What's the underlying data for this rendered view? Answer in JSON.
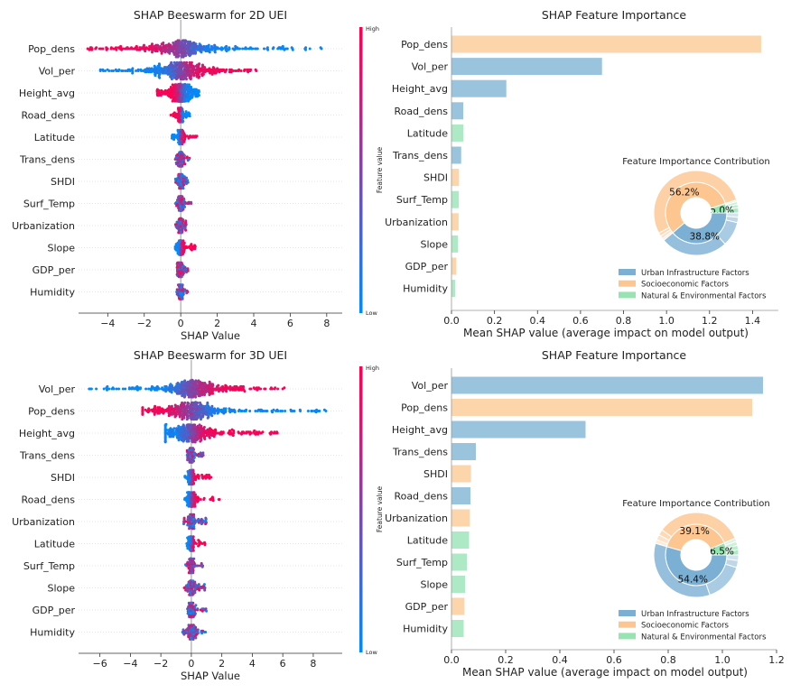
{
  "chart_data": [
    {
      "type": "scatter",
      "subtype": "beeswarm",
      "title": "SHAP Beeswarm for 2D UEI",
      "xlabel": "SHAP Value",
      "xlim": [
        -5.6,
        8.85
      ],
      "xticks": [
        -4,
        -2,
        0,
        2,
        4,
        6,
        8
      ],
      "colorbar": {
        "label": "Feature value",
        "high": "High",
        "low": "Low",
        "low_color": "#008bfb",
        "high_color": "#ff0051"
      },
      "features": [
        {
          "name": "Pop_dens",
          "range": [
            -5.1,
            8.2
          ],
          "high_side": "left"
        },
        {
          "name": "Vol_per",
          "range": [
            -4.4,
            4.3
          ],
          "high_side": "right"
        },
        {
          "name": "Height_avg",
          "range": [
            -1.3,
            1.0
          ],
          "high_side": "left"
        },
        {
          "name": "Road_dens",
          "range": [
            -0.6,
            0.5
          ],
          "high_side": "left"
        },
        {
          "name": "Latitude",
          "range": [
            -0.5,
            0.9
          ],
          "high_side": "right"
        },
        {
          "name": "Trans_dens",
          "range": [
            -0.3,
            0.5
          ],
          "high_side": "mixed"
        },
        {
          "name": "SHDI",
          "range": [
            -0.3,
            0.4
          ],
          "high_side": "mixed"
        },
        {
          "name": "Surf_Temp",
          "range": [
            -0.3,
            0.6
          ],
          "high_side": "mixed"
        },
        {
          "name": "Urbanization",
          "range": [
            -0.3,
            0.4
          ],
          "high_side": "mixed"
        },
        {
          "name": "Slope",
          "range": [
            -0.3,
            0.8
          ],
          "high_side": "right"
        },
        {
          "name": "GDP_per",
          "range": [
            -0.2,
            0.4
          ],
          "high_side": "mixed"
        },
        {
          "name": "Humidity",
          "range": [
            -0.3,
            0.4
          ],
          "high_side": "mixed"
        }
      ]
    },
    {
      "type": "bar",
      "orientation": "horizontal",
      "title": "SHAP Feature Importance",
      "xlabel": "Mean SHAP value (average impact on model output)",
      "xlim": [
        0,
        1.52
      ],
      "xticks": [
        "0.0",
        "0.2",
        "0.4",
        "0.6",
        "0.8",
        "1.0",
        "1.2",
        "1.4"
      ],
      "categories": [
        "Pop_dens",
        "Vol_per",
        "Height_avg",
        "Road_dens",
        "Latitude",
        "Trans_dens",
        "SHDI",
        "Surf_Temp",
        "Urbanization",
        "Slope",
        "GDP_per",
        "Humidity"
      ],
      "values": [
        1.44,
        0.7,
        0.255,
        0.055,
        0.055,
        0.045,
        0.035,
        0.034,
        0.033,
        0.03,
        0.022,
        0.018
      ],
      "groups": [
        "Socio",
        "Urban",
        "Urban",
        "Urban",
        "Natural",
        "Urban",
        "Socio",
        "Natural",
        "Socio",
        "Natural",
        "Socio",
        "Natural"
      ],
      "inset": {
        "type": "pie",
        "title": "Feature Importance Contribution",
        "slices": [
          {
            "key": "Natural",
            "label": "Natural & Environmental Factors",
            "percent": 5.0,
            "pct_label": "5.0%",
            "color": "#98e3b2"
          },
          {
            "key": "Socio",
            "label": "Socioeconomic Factors",
            "percent": 56.2,
            "pct_label": "56.2%",
            "color": "#fdc58f"
          },
          {
            "key": "Urban",
            "label": "Urban Infrastructure Factors",
            "percent": 38.8,
            "pct_label": "38.8%",
            "color": "#7bafd4"
          }
        ],
        "legend": [
          "Urban Infrastructure Factors",
          "Socioeconomic Factors",
          "Natural & Environmental Factors"
        ],
        "legend_position": "lower-right"
      }
    },
    {
      "type": "scatter",
      "subtype": "beeswarm",
      "title": "SHAP Beeswarm for 3D UEI",
      "xlabel": "SHAP Value",
      "xlim": [
        -7.4,
        9.9
      ],
      "xticks": [
        -6,
        -4,
        -2,
        0,
        2,
        4,
        6,
        8
      ],
      "colorbar": {
        "label": "Feature value",
        "high": "High",
        "low": "Low",
        "low_color": "#008bfb",
        "high_color": "#ff0051"
      },
      "features": [
        {
          "name": "Vol_per",
          "range": [
            -6.7,
            6.1
          ],
          "high_side": "right"
        },
        {
          "name": "Pop_dens",
          "range": [
            -3.2,
            9.2
          ],
          "high_side": "left"
        },
        {
          "name": "Height_avg",
          "range": [
            -1.7,
            5.7
          ],
          "high_side": "right"
        },
        {
          "name": "Trans_dens",
          "range": [
            -0.4,
            0.9
          ],
          "high_side": "mixed"
        },
        {
          "name": "SHDI",
          "range": [
            -0.5,
            1.3
          ],
          "high_side": "right"
        },
        {
          "name": "Road_dens",
          "range": [
            -0.5,
            1.9
          ],
          "high_side": "right"
        },
        {
          "name": "Urbanization",
          "range": [
            -0.5,
            1.0
          ],
          "high_side": "mixed"
        },
        {
          "name": "Latitude",
          "range": [
            -0.3,
            0.9
          ],
          "high_side": "right"
        },
        {
          "name": "Surf_Temp",
          "range": [
            -0.4,
            0.8
          ],
          "high_side": "mixed"
        },
        {
          "name": "Slope",
          "range": [
            -0.5,
            0.9
          ],
          "high_side": "mixed"
        },
        {
          "name": "GDP_per",
          "range": [
            -0.3,
            1.0
          ],
          "high_side": "mixed"
        },
        {
          "name": "Humidity",
          "range": [
            -0.6,
            1.0
          ],
          "high_side": "mixed"
        }
      ]
    },
    {
      "type": "bar",
      "orientation": "horizontal",
      "title": "SHAP Feature Importance",
      "xlabel": "Mean SHAP value (average impact on model output)",
      "xlim": [
        0,
        1.2
      ],
      "xticks": [
        "0.0",
        "0.2",
        "0.4",
        "0.6",
        "0.8",
        "1.0",
        "1.2"
      ],
      "categories": [
        "Vol_per",
        "Pop_dens",
        "Height_avg",
        "Trans_dens",
        "SHDI",
        "Road_dens",
        "Urbanization",
        "Latitude",
        "Surf_Temp",
        "Slope",
        "GDP_per",
        "Humidity"
      ],
      "values": [
        1.15,
        1.11,
        0.495,
        0.09,
        0.072,
        0.07,
        0.068,
        0.065,
        0.057,
        0.05,
        0.048,
        0.045
      ],
      "groups": [
        "Urban",
        "Socio",
        "Urban",
        "Urban",
        "Socio",
        "Urban",
        "Socio",
        "Natural",
        "Natural",
        "Natural",
        "Socio",
        "Natural"
      ],
      "inset": {
        "type": "pie",
        "title": "Feature Importance Contribution",
        "slices": [
          {
            "key": "Natural",
            "label": "Natural & Environmental Factors",
            "percent": 6.5,
            "pct_label": "6.5%",
            "color": "#98e3b2"
          },
          {
            "key": "Socio",
            "label": "Socioeconomic Factors",
            "percent": 39.1,
            "pct_label": "39.1%",
            "color": "#fdc58f"
          },
          {
            "key": "Urban",
            "label": "Urban Infrastructure Factors",
            "percent": 54.4,
            "pct_label": "54.4%",
            "color": "#7bafd4"
          }
        ],
        "legend": [
          "Urban Infrastructure Factors",
          "Socioeconomic Factors",
          "Natural & Environmental Factors"
        ],
        "legend_position": "lower-right"
      }
    }
  ],
  "bar_colors": {
    "Urban": "#9ac4de",
    "Socio": "#fdd5aa",
    "Natural": "#aee9c6"
  }
}
